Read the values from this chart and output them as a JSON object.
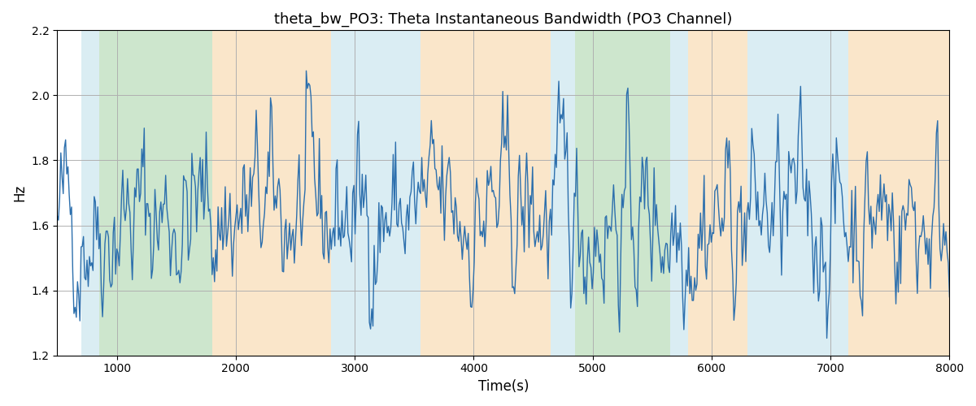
{
  "title": "theta_bw_PO3: Theta Instantaneous Bandwidth (PO3 Channel)",
  "xlabel": "Time(s)",
  "ylabel": "Hz",
  "xlim": [
    500,
    8000
  ],
  "ylim": [
    1.2,
    2.2
  ],
  "yticks": [
    1.2,
    1.4,
    1.6,
    1.8,
    2.0,
    2.2
  ],
  "xticks": [
    1000,
    2000,
    3000,
    4000,
    5000,
    6000,
    7000,
    8000
  ],
  "line_color": "#2c6fad",
  "line_width": 1.0,
  "background_color": "#ffffff",
  "grid_color": "#b0b0b0",
  "figsize": [
    12,
    5
  ],
  "dpi": 100,
  "mean_value": 1.63,
  "std_value": 0.1,
  "seed": 42,
  "n_points": 750,
  "ar_phi": 0.75,
  "colored_regions": [
    {
      "xmin": 700,
      "xmax": 850,
      "color": "#add8e6",
      "alpha": 0.45
    },
    {
      "xmin": 850,
      "xmax": 1800,
      "color": "#90c990",
      "alpha": 0.45
    },
    {
      "xmin": 1800,
      "xmax": 2800,
      "color": "#f5c98a",
      "alpha": 0.45
    },
    {
      "xmin": 2800,
      "xmax": 3550,
      "color": "#add8e6",
      "alpha": 0.45
    },
    {
      "xmin": 3550,
      "xmax": 4650,
      "color": "#f5c98a",
      "alpha": 0.45
    },
    {
      "xmin": 4650,
      "xmax": 4850,
      "color": "#add8e6",
      "alpha": 0.45
    },
    {
      "xmin": 4850,
      "xmax": 5650,
      "color": "#90c990",
      "alpha": 0.45
    },
    {
      "xmin": 5650,
      "xmax": 5800,
      "color": "#add8e6",
      "alpha": 0.45
    },
    {
      "xmin": 5800,
      "xmax": 6300,
      "color": "#f5c98a",
      "alpha": 0.45
    },
    {
      "xmin": 6300,
      "xmax": 7150,
      "color": "#add8e6",
      "alpha": 0.45
    },
    {
      "xmin": 7150,
      "xmax": 8050,
      "color": "#f5c98a",
      "alpha": 0.45
    }
  ]
}
